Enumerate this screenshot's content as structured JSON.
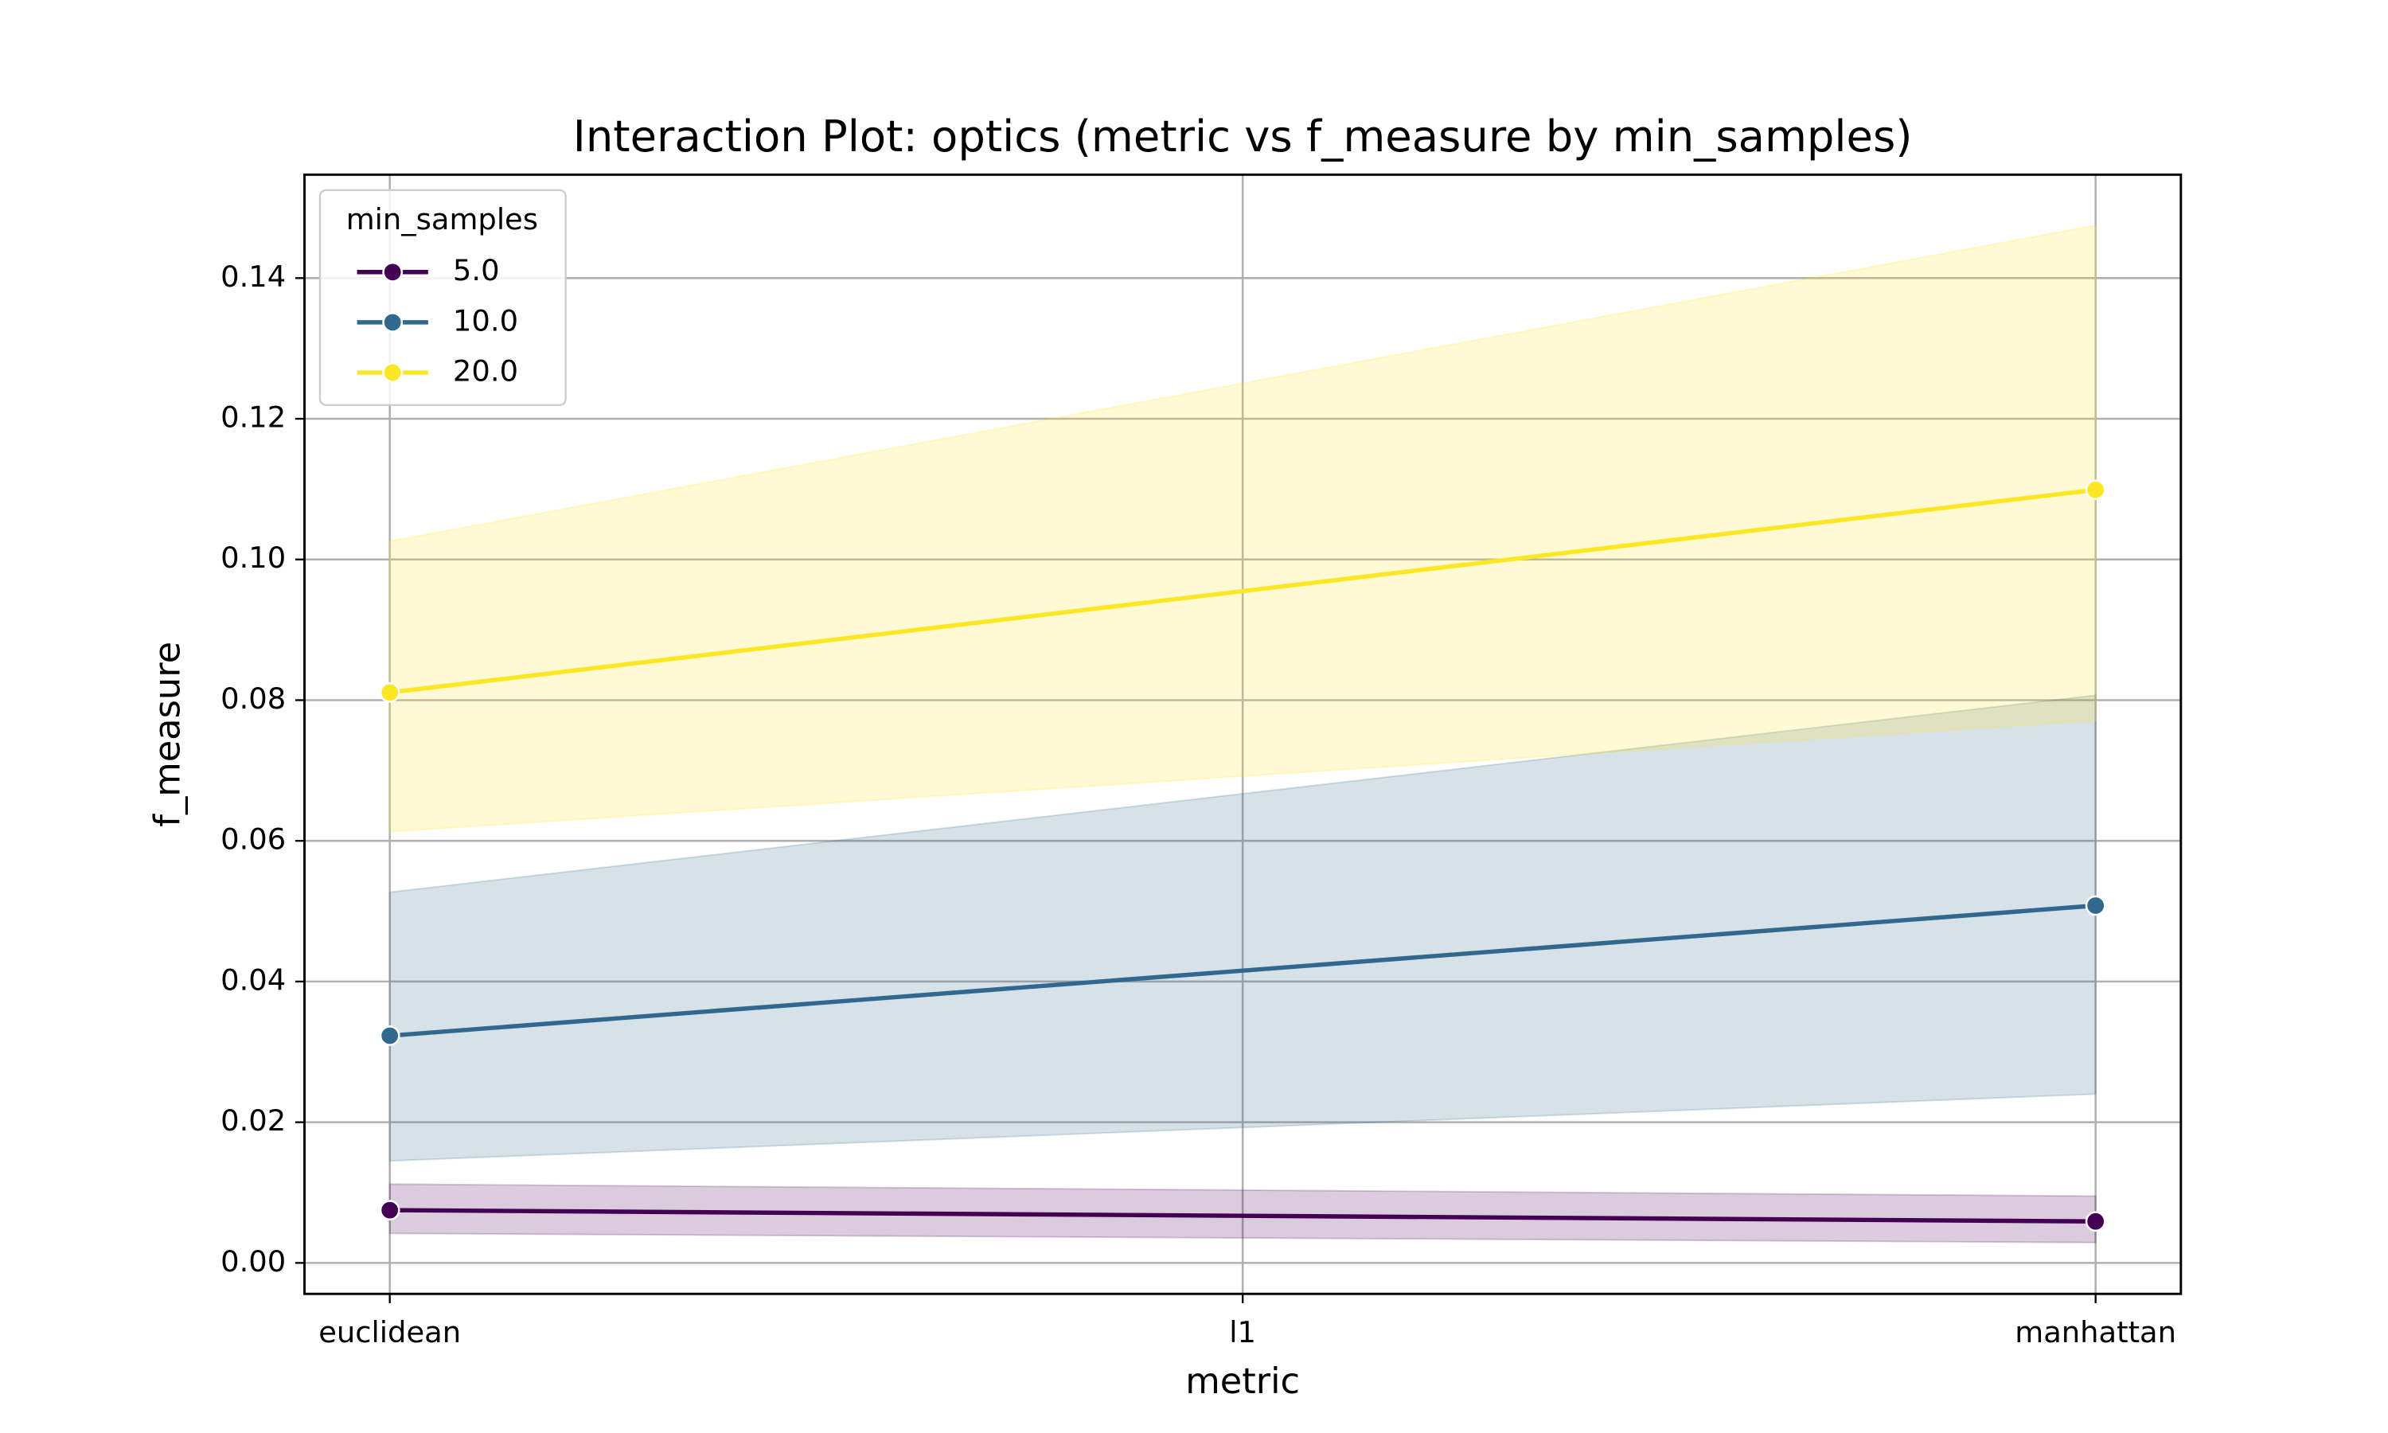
{
  "chart_data": {
    "type": "line",
    "title": "Interaction Plot: optics (metric vs f_measure by min_samples)",
    "x_label": "metric",
    "y_label": "f_measure",
    "categories": [
      "euclidean",
      "l1",
      "manhattan"
    ],
    "ylim": [
      -0.0044,
      0.1547
    ],
    "yticks": [
      {
        "value": 0,
        "label": "0.00"
      },
      {
        "value": 0.02,
        "label": "0.02"
      },
      {
        "value": 0.04,
        "label": "0.04"
      },
      {
        "value": 0.06,
        "label": "0.06"
      },
      {
        "value": 0.08,
        "label": "0.08"
      },
      {
        "value": 0.1,
        "label": "0.10"
      },
      {
        "value": 0.12,
        "label": "0.12"
      },
      {
        "value": 0.14,
        "label": "0.14"
      }
    ],
    "grid": true,
    "legend_title": "min_samples",
    "legend": "upper left",
    "series": [
      {
        "name": "5.0",
        "color": "#440154",
        "x": [
          "euclidean",
          "manhattan"
        ],
        "values": [
          0.0075,
          0.0059
        ],
        "lower": [
          0.0042,
          0.0029
        ],
        "upper": [
          0.0112,
          0.0095
        ]
      },
      {
        "name": "10.0",
        "color": "#31688e",
        "x": [
          "euclidean",
          "manhattan"
        ],
        "values": [
          0.0323,
          0.0508
        ],
        "lower": [
          0.0145,
          0.024
        ],
        "upper": [
          0.0527,
          0.0807
        ]
      },
      {
        "name": "20.0",
        "color": "#fde725",
        "x": [
          "euclidean",
          "manhattan"
        ],
        "values": [
          0.0811,
          0.1099
        ],
        "lower": [
          0.0613,
          0.0771
        ],
        "upper": [
          0.1026,
          0.1475
        ]
      }
    ]
  }
}
